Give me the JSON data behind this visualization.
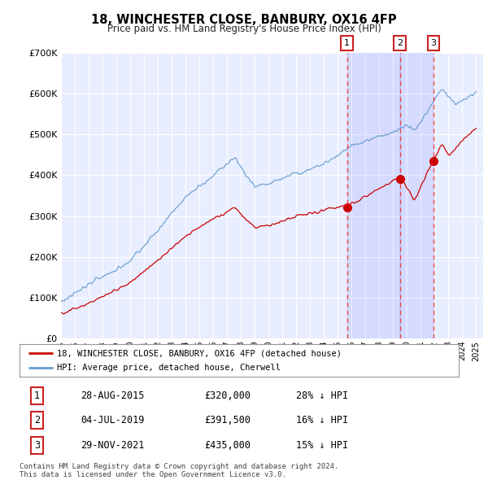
{
  "title": "18, WINCHESTER CLOSE, BANBURY, OX16 4FP",
  "subtitle": "Price paid vs. HM Land Registry's House Price Index (HPI)",
  "ylim": [
    0,
    700000
  ],
  "xlim_start": 1995.0,
  "xlim_end": 2025.5,
  "sale_dates": [
    2015.66,
    2019.5,
    2021.91
  ],
  "sale_prices": [
    320000,
    391500,
    435000
  ],
  "sale_labels": [
    "1",
    "2",
    "3"
  ],
  "sale_date_strs": [
    "28-AUG-2015",
    "04-JUL-2019",
    "29-NOV-2021"
  ],
  "sale_price_strs": [
    "£320,000",
    "£391,500",
    "£435,000"
  ],
  "sale_pct_strs": [
    "28% ↓ HPI",
    "16% ↓ HPI",
    "15% ↓ HPI"
  ],
  "legend_line1": "18, WINCHESTER CLOSE, BANBURY, OX16 4FP (detached house)",
  "legend_line2": "HPI: Average price, detached house, Cherwell",
  "footnote": "Contains HM Land Registry data © Crown copyright and database right 2024.\nThis data is licensed under the Open Government Licence v3.0.",
  "line_color_red": "#cc0000",
  "line_color_blue": "#6699cc",
  "vline_color": "#ee4444",
  "background_chart": "#e8eeff",
  "background_figure": "#ffffff",
  "grid_color": "#ffffff",
  "x_ticks": [
    1995,
    1996,
    1997,
    1998,
    1999,
    2000,
    2001,
    2002,
    2003,
    2004,
    2005,
    2006,
    2007,
    2008,
    2009,
    2010,
    2011,
    2012,
    2013,
    2014,
    2015,
    2016,
    2017,
    2018,
    2019,
    2020,
    2021,
    2022,
    2023,
    2024,
    2025
  ]
}
